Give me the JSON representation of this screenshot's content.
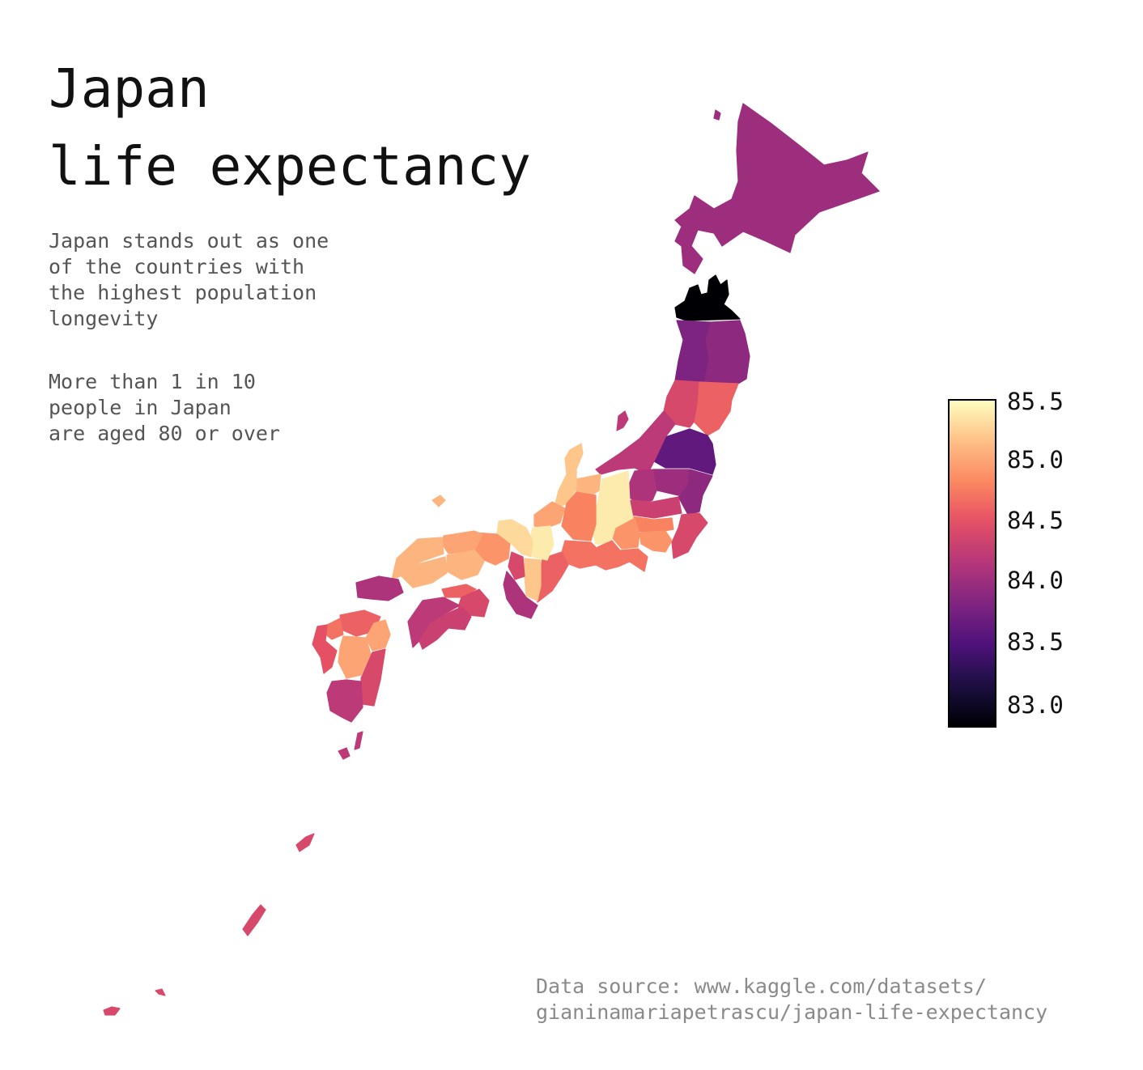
{
  "title_line1": "Japan",
  "title_line2": "life expectancy",
  "notes": {
    "line1": "Japan stands out as one\nof the countries with\nthe highest population\nlongevity",
    "line2": "More than 1 in 10\npeople in Japan\nare aged 80 or over"
  },
  "source": "Data source: www.kaggle.com/datasets/\ngianinamariapetrascu/japan-life-expectancy",
  "colorbar": {
    "colormap": "magma",
    "min": 82.8,
    "max": 85.5,
    "ticks": [
      "85.5",
      "85.0",
      "84.5",
      "84.0",
      "83.5",
      "83.0"
    ]
  },
  "chart_data": {
    "type": "choropleth",
    "value_range": [
      82.8,
      85.5
    ],
    "regions": [
      {
        "id": "hokkaido",
        "value": 84.0
      },
      {
        "id": "aomori",
        "value": 82.8
      },
      {
        "id": "akita",
        "value": 83.8
      },
      {
        "id": "iwate",
        "value": 83.9
      },
      {
        "id": "yamagata",
        "value": 84.4
      },
      {
        "id": "miyagi",
        "value": 84.6
      },
      {
        "id": "niigata",
        "value": 84.2
      },
      {
        "id": "fukushima",
        "value": 83.6
      },
      {
        "id": "ibaraki",
        "value": 83.9
      },
      {
        "id": "tochigi",
        "value": 84.0
      },
      {
        "id": "gunma",
        "value": 84.1
      },
      {
        "id": "saitama",
        "value": 84.3
      },
      {
        "id": "chiba",
        "value": 84.4
      },
      {
        "id": "tokyo",
        "value": 84.8
      },
      {
        "id": "kanagawa",
        "value": 84.9
      },
      {
        "id": "yamanashi",
        "value": 84.9
      },
      {
        "id": "nagano",
        "value": 85.4
      },
      {
        "id": "shizuoka",
        "value": 84.7
      },
      {
        "id": "toyama",
        "value": 85.1
      },
      {
        "id": "ishikawa",
        "value": 85.2
      },
      {
        "id": "fukui",
        "value": 85.0
      },
      {
        "id": "gifu",
        "value": 84.8
      },
      {
        "id": "aichi",
        "value": 84.7
      },
      {
        "id": "mie",
        "value": 84.6
      },
      {
        "id": "shiga",
        "value": 85.4
      },
      {
        "id": "kyoto",
        "value": 85.3
      },
      {
        "id": "nara",
        "value": 85.2
      },
      {
        "id": "osaka",
        "value": 84.4
      },
      {
        "id": "wakayama",
        "value": 84.1
      },
      {
        "id": "hyogo",
        "value": 84.9
      },
      {
        "id": "tottori",
        "value": 85.0
      },
      {
        "id": "okayama",
        "value": 85.1
      },
      {
        "id": "shimane",
        "value": 85.1
      },
      {
        "id": "hiroshima",
        "value": 85.1
      },
      {
        "id": "yamaguchi",
        "value": 84.1
      },
      {
        "id": "kagawa",
        "value": 84.6
      },
      {
        "id": "tokushima",
        "value": 84.4
      },
      {
        "id": "ehime",
        "value": 84.2
      },
      {
        "id": "kochi",
        "value": 84.3
      },
      {
        "id": "fukuoka",
        "value": 84.6
      },
      {
        "id": "saga",
        "value": 84.7
      },
      {
        "id": "nagasaki",
        "value": 84.5
      },
      {
        "id": "oita",
        "value": 85.0
      },
      {
        "id": "kumamoto",
        "value": 85.0
      },
      {
        "id": "miyazaki",
        "value": 84.4
      },
      {
        "id": "kagoshima",
        "value": 84.2
      },
      {
        "id": "okinawa",
        "value": 84.4
      }
    ]
  }
}
